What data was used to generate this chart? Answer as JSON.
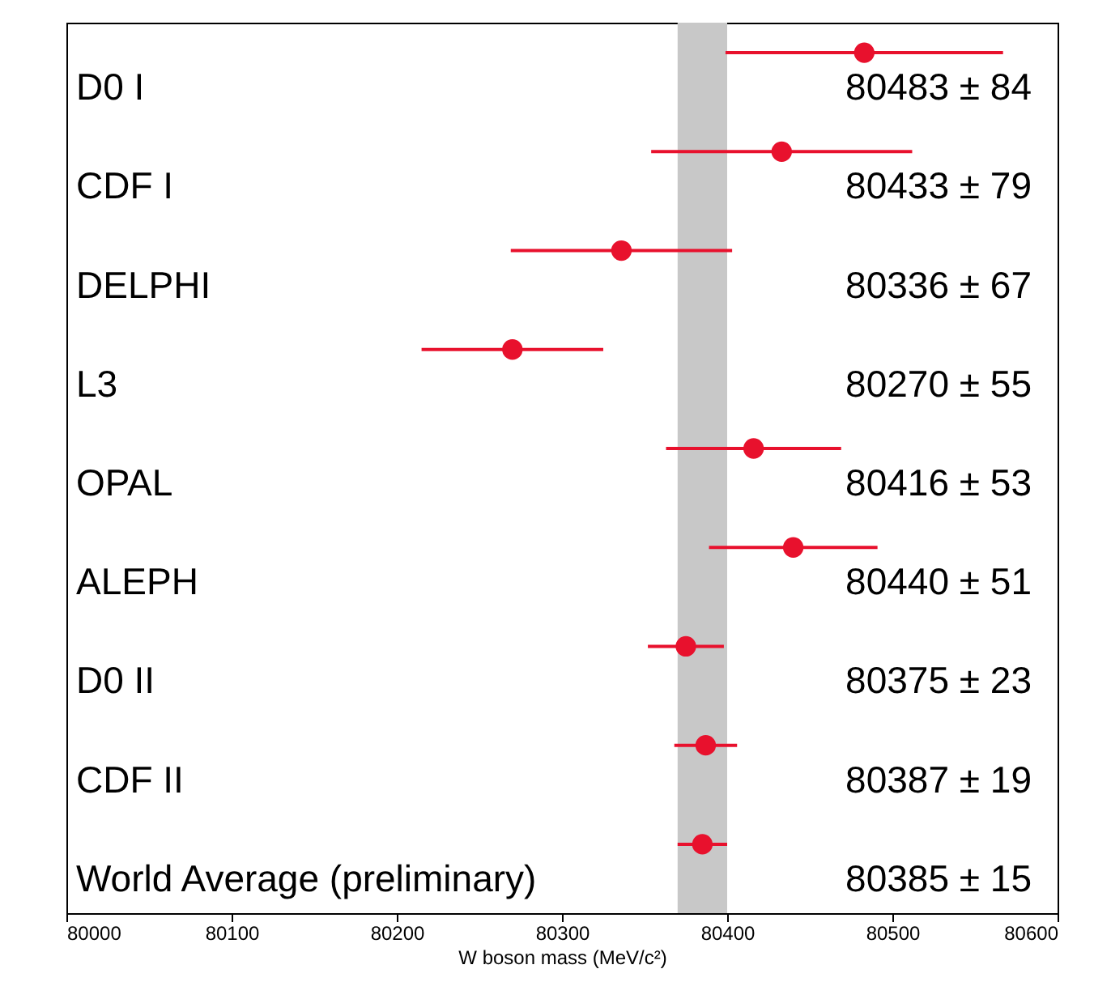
{
  "chart_data": {
    "type": "scatter",
    "orientation": "horizontal",
    "xlabel": "W boson mass (MeV/c²)",
    "categories": [
      "D0 I",
      "CDF I",
      "DELPHI",
      "L3",
      "OPAL",
      "ALEPH",
      "D0 II",
      "CDF II",
      "World Average (preliminary)"
    ],
    "values": [
      80483,
      80433,
      80336,
      80270,
      80416,
      80440,
      80375,
      80387,
      80385
    ],
    "errors": [
      84,
      79,
      67,
      55,
      53,
      51,
      23,
      19,
      15
    ],
    "annotations": [
      "80483 ±  84",
      "80433 ±  79",
      "80336 ±  67",
      "80270 ±  55",
      "80416 ±  53",
      "80440 ±  51",
      "80375 ±  23",
      "80387 ±  19",
      "80385 ±  15"
    ],
    "color": "#e8112d",
    "marker": "circle",
    "xlim": [
      80000,
      80600
    ],
    "xticks": [
      80000,
      80100,
      80200,
      80300,
      80400,
      80500,
      80600
    ],
    "bands": [
      {
        "axis": "x",
        "from": 80370,
        "to": 80400,
        "color": "#c8c8c8"
      }
    ],
    "grid": false,
    "tick_labels": "x"
  }
}
